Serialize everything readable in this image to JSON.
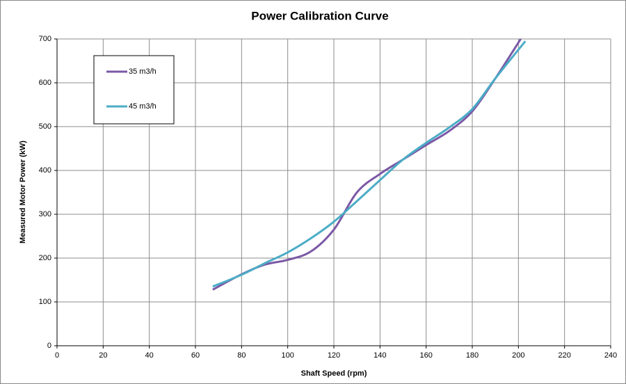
{
  "chart_data": {
    "type": "line",
    "title": "Power Calibration Curve",
    "x_label": "Shaft Speed (rpm)",
    "y_label": "Measured Motor Power (kW)",
    "xlim": [
      0,
      240
    ],
    "xticks": [
      0,
      20,
      40,
      60,
      80,
      100,
      120,
      140,
      160,
      180,
      200,
      220,
      240
    ],
    "ylim": [
      0,
      700
    ],
    "yticks": [
      0,
      100,
      200,
      300,
      400,
      500,
      600,
      700
    ],
    "grid": true,
    "legend": "upper left",
    "series": [
      {
        "name": "35 m3/h",
        "color": "#7b58a6",
        "x": [
          67.5,
          80,
          90,
          100,
          110,
          120,
          130,
          140,
          150,
          160,
          170,
          180,
          190,
          201
        ],
        "values": [
          128,
          163,
          185,
          196,
          215,
          265,
          350,
          392,
          425,
          458,
          490,
          535,
          610,
          700
        ]
      },
      {
        "name": "45 m3/h",
        "color": "#4bacc6",
        "x": [
          67.5,
          80,
          90,
          100,
          110,
          120,
          130,
          140,
          150,
          160,
          170,
          180,
          190,
          203
        ],
        "values": [
          135,
          162,
          188,
          213,
          245,
          283,
          330,
          378,
          425,
          463,
          498,
          540,
          610,
          695
        ]
      }
    ]
  }
}
